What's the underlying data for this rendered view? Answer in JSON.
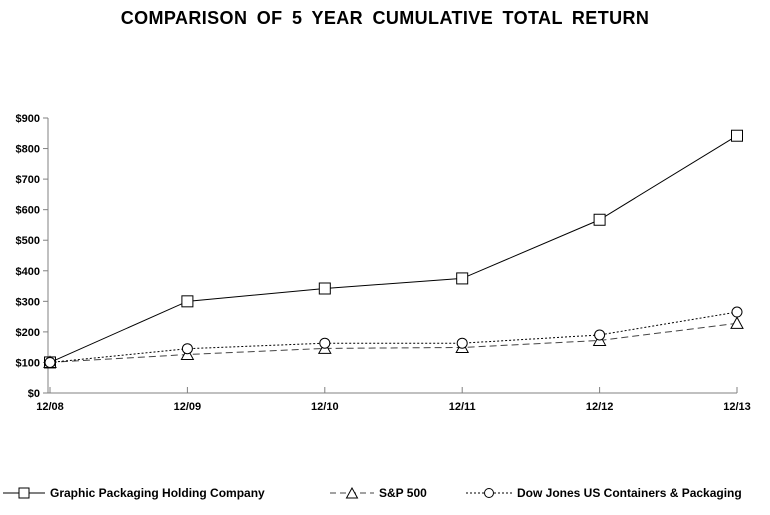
{
  "title": "COMPARISON OF 5 YEAR CUMULATIVE TOTAL RETURN",
  "chart_data": {
    "type": "line",
    "title": "COMPARISON OF 5 YEAR CUMULATIVE TOTAL RETURN",
    "categories": [
      "12/08",
      "12/09",
      "12/10",
      "12/11",
      "12/12",
      "12/13"
    ],
    "series": [
      {
        "name": "Graphic Packaging Holding Company",
        "marker": "square",
        "line_style": "solid",
        "color": "#000000",
        "values": [
          100,
          300,
          342,
          375,
          567,
          842
        ]
      },
      {
        "name": "S&P 500",
        "marker": "triangle",
        "line_style": "dashed",
        "color": "#444444",
        "values": [
          100,
          126,
          146,
          149,
          172,
          228
        ]
      },
      {
        "name": "Dow Jones US Containers & Packaging",
        "marker": "circle",
        "line_style": "dotted",
        "color": "#000000",
        "values": [
          100,
          145,
          163,
          163,
          190,
          265
        ]
      }
    ],
    "y_ticks": [
      "$0",
      "$100",
      "$200",
      "$300",
      "$400",
      "$500",
      "$600",
      "$700",
      "$800",
      "$900"
    ],
    "y_tick_values": [
      0,
      100,
      200,
      300,
      400,
      500,
      600,
      700,
      800,
      900
    ],
    "ylim": [
      0,
      900
    ],
    "xlabel": "",
    "ylabel": "",
    "grid": false,
    "legend_position": "bottom",
    "colors": {
      "axis": "#808080",
      "text": "#000000",
      "background": "#ffffff",
      "marker_fill": "#ffffff"
    }
  }
}
